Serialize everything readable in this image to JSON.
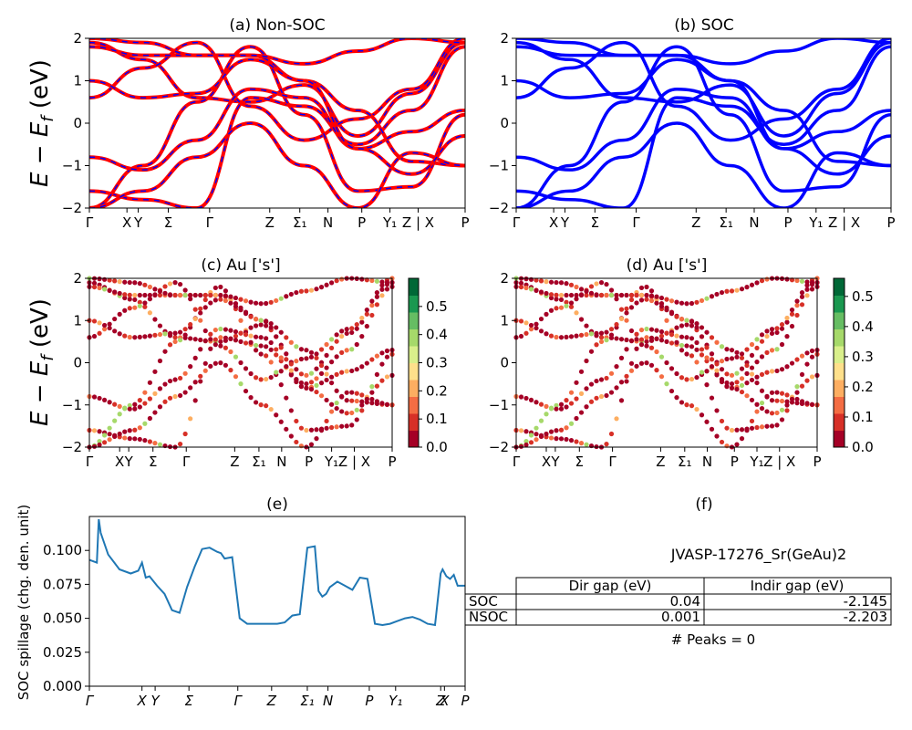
{
  "colors": {
    "nonsoc": "#ff0000",
    "soc": "#0000ff",
    "spill": "#1f77b4",
    "cmap": [
      "#a50026",
      "#d73027",
      "#f46d43",
      "#fdae61",
      "#fee08b",
      "#d9ef8b",
      "#a6d96a",
      "#66bd63",
      "#1a9850",
      "#006837"
    ]
  },
  "kpath_labels": [
    "Γ",
    "X",
    "Y",
    "Σ",
    "Γ",
    "Z",
    "Σ₁",
    "N",
    "P",
    "Y₁",
    "Z | X",
    "P"
  ],
  "kpath_labels_e": [
    "Γ",
    "X",
    "Y",
    "Σ",
    "Γ",
    "Z",
    "Σ₁",
    "N",
    "P",
    "Y₁",
    "Z",
    "X",
    "P"
  ],
  "kpath_pos": [
    0,
    0.1,
    0.13,
    0.21,
    0.32,
    0.48,
    0.56,
    0.635,
    0.725,
    0.8,
    0.875,
    1.0
  ],
  "kpath_pos_e": [
    0,
    0.14,
    0.175,
    0.265,
    0.395,
    0.485,
    0.58,
    0.635,
    0.745,
    0.815,
    0.935,
    0.945,
    1.0
  ],
  "ylabel_band": "E − E_f (eV)",
  "panels": {
    "a": {
      "title": "(a) Non-SOC"
    },
    "b": {
      "title": "(b) SOC"
    },
    "c": {
      "title": "(c)  Au ['s']"
    },
    "d": {
      "title": "(d) Au ['s']"
    },
    "e": {
      "title": "(e)"
    },
    "f": {
      "title": "(f)"
    }
  },
  "table": {
    "material": "JVASP-17276_Sr(GeAu)2",
    "headers": [
      "",
      "Dir gap (eV)",
      "Indir gap (eV)"
    ],
    "rows": [
      {
        "label": "SOC",
        "dir": "0.04",
        "indir": "-2.145"
      },
      {
        "label": "NSOC",
        "dir": "0.001",
        "indir": "-2.203"
      }
    ],
    "peaks": "# Peaks = 0"
  },
  "chart_data": [
    {
      "type": "line",
      "panel": "a",
      "title": "(a) Non-SOC",
      "ylabel": "E − E_f (eV)",
      "ylim": [
        -2,
        2
      ],
      "yticks": [
        "-2",
        "-1",
        "0",
        "1",
        "2"
      ],
      "xlabels": [
        "Γ",
        "X",
        "Y",
        "Σ",
        "Γ",
        "Z",
        "Σ₁",
        "N",
        "P",
        "Y₁",
        "Z | X",
        "P"
      ],
      "series": [
        {
          "values": [
            1.9,
            1.5,
            0.6,
            0.5,
            0.9,
            -0.3,
            0.7,
            1.9
          ]
        },
        {
          "values": [
            0.6,
            1.3,
            1.9,
            0.4,
            -0.4,
            0.1,
            0.8,
            2.0
          ]
        },
        {
          "values": [
            -1.6,
            -1.8,
            -2.0,
            0.6,
            0.4,
            -0.5,
            0.3,
            1.8
          ]
        },
        {
          "values": [
            -2.0,
            -1.0,
            0.5,
            1.8,
            0.2,
            -1.6,
            -1.5,
            0.2
          ]
        },
        {
          "values": [
            1.8,
            1.6,
            1.6,
            1.6,
            1.0,
            0.3,
            -0.9,
            -1.0
          ]
        },
        {
          "values": [
            -0.8,
            -1.1,
            -0.4,
            0.8,
            0.6,
            -0.6,
            -0.2,
            0.3
          ]
        },
        {
          "values": [
            -2.0,
            -1.6,
            -0.8,
            0.0,
            -1.0,
            -2.0,
            -0.7,
            -1.0
          ]
        },
        {
          "values": [
            1.0,
            0.6,
            0.7,
            1.5,
            1.0,
            -0.6,
            -1.2,
            -0.3
          ]
        },
        {
          "values": [
            2.0,
            1.9,
            1.6,
            1.6,
            1.4,
            1.7,
            2.0,
            1.9
          ]
        }
      ]
    },
    {
      "type": "line",
      "panel": "b",
      "title": "(b) SOC",
      "ylim": [
        -2,
        2
      ],
      "yticks": [
        "-2",
        "-1",
        "0",
        "1",
        "2"
      ],
      "xlabels": [
        "Γ",
        "X",
        "Y",
        "Σ",
        "Γ",
        "Z",
        "Σ₁",
        "N",
        "P",
        "Y₁",
        "Z | X",
        "P"
      ],
      "series": [
        {
          "values": [
            1.9,
            1.5,
            0.6,
            0.5,
            0.9,
            -0.3,
            0.7,
            1.9
          ]
        },
        {
          "values": [
            0.6,
            1.3,
            1.9,
            0.4,
            -0.4,
            0.1,
            0.8,
            2.0
          ]
        },
        {
          "values": [
            -1.6,
            -1.8,
            -2.0,
            0.6,
            0.4,
            -0.5,
            0.3,
            1.8
          ]
        },
        {
          "values": [
            -2.0,
            -1.0,
            0.5,
            1.8,
            0.2,
            -1.6,
            -1.5,
            0.2
          ]
        },
        {
          "values": [
            1.8,
            1.6,
            1.6,
            1.6,
            1.0,
            0.3,
            -0.9,
            -1.0
          ]
        },
        {
          "values": [
            -0.8,
            -1.1,
            -0.4,
            0.8,
            0.6,
            -0.6,
            -0.2,
            0.3
          ]
        },
        {
          "values": [
            -2.0,
            -1.6,
            -0.8,
            0.0,
            -1.0,
            -2.0,
            -0.7,
            -1.0
          ]
        },
        {
          "values": [
            1.0,
            0.6,
            0.7,
            1.5,
            1.0,
            -0.6,
            -1.2,
            -0.3
          ]
        },
        {
          "values": [
            2.0,
            1.9,
            1.6,
            1.6,
            1.4,
            1.7,
            2.0,
            1.9
          ]
        }
      ]
    },
    {
      "type": "scatter",
      "panel": "c",
      "title": "(c)  Au ['s']",
      "ylabel": "E − E_f (eV)",
      "ylim": [
        -2,
        2
      ],
      "colorbar": {
        "range": [
          0,
          0.6
        ],
        "ticks": [
          "0.0",
          "0.1",
          "0.2",
          "0.3",
          "0.4",
          "0.5"
        ]
      }
    },
    {
      "type": "scatter",
      "panel": "d",
      "title": "(d) Au ['s']",
      "ylim": [
        -2,
        2
      ],
      "colorbar": {
        "range": [
          0,
          0.56
        ],
        "ticks": [
          "0.0",
          "0.1",
          "0.2",
          "0.3",
          "0.4",
          "0.5"
        ]
      }
    },
    {
      "type": "line",
      "panel": "e",
      "title": "(e)",
      "ylabel": "SOC spillage (chg. den. unit)",
      "ylim": [
        0,
        0.125
      ],
      "yticks": [
        "0.000",
        "0.025",
        "0.050",
        "0.075",
        "0.100"
      ],
      "x": [
        0,
        0.02,
        0.025,
        0.03,
        0.05,
        0.08,
        0.11,
        0.13,
        0.14,
        0.15,
        0.16,
        0.18,
        0.2,
        0.22,
        0.24,
        0.26,
        0.28,
        0.3,
        0.32,
        0.34,
        0.35,
        0.36,
        0.38,
        0.4,
        0.42,
        0.44,
        0.46,
        0.48,
        0.5,
        0.52,
        0.54,
        0.56,
        0.58,
        0.6,
        0.61,
        0.62,
        0.63,
        0.64,
        0.66,
        0.68,
        0.7,
        0.72,
        0.74,
        0.76,
        0.78,
        0.8,
        0.82,
        0.84,
        0.86,
        0.88,
        0.9,
        0.92,
        0.935,
        0.94,
        0.95,
        0.96,
        0.97,
        0.98,
        1.0
      ],
      "values": [
        0.093,
        0.091,
        0.123,
        0.113,
        0.097,
        0.086,
        0.083,
        0.085,
        0.091,
        0.08,
        0.081,
        0.074,
        0.068,
        0.056,
        0.054,
        0.073,
        0.088,
        0.101,
        0.102,
        0.099,
        0.098,
        0.094,
        0.095,
        0.05,
        0.046,
        0.046,
        0.046,
        0.046,
        0.046,
        0.047,
        0.052,
        0.053,
        0.102,
        0.103,
        0.07,
        0.066,
        0.068,
        0.073,
        0.077,
        0.074,
        0.071,
        0.08,
        0.079,
        0.046,
        0.045,
        0.046,
        0.048,
        0.05,
        0.051,
        0.049,
        0.046,
        0.045,
        0.083,
        0.086,
        0.081,
        0.079,
        0.082,
        0.074,
        0.074
      ]
    }
  ]
}
